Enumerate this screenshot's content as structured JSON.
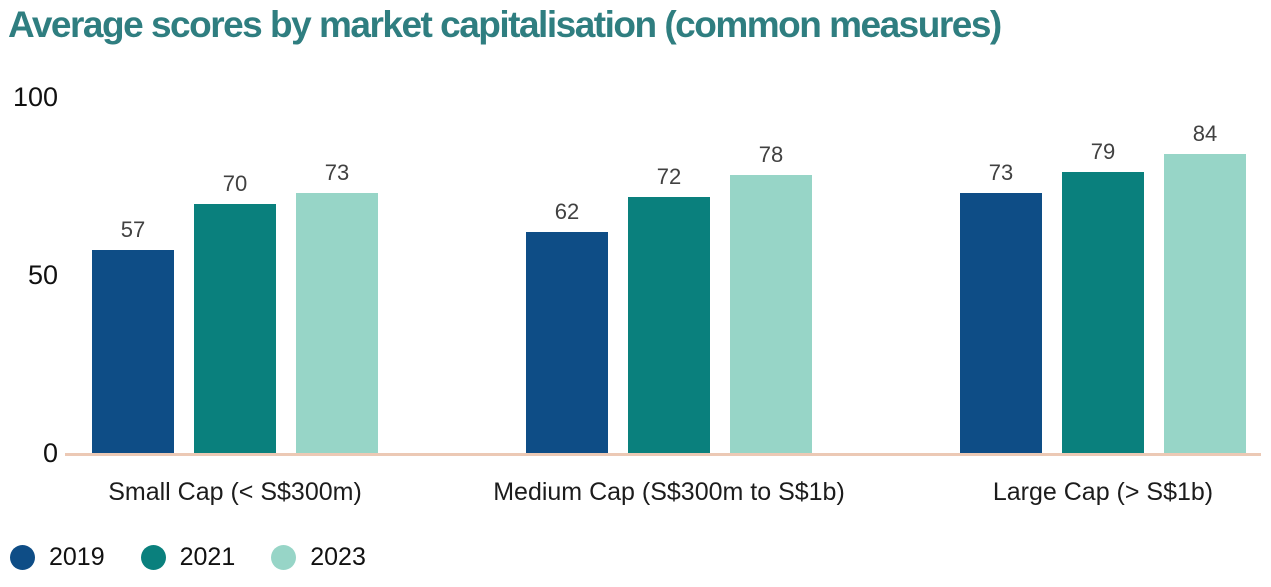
{
  "title": "Average scores by market capitalisation (common measures)",
  "colors": {
    "title_text": "#2f7e80",
    "axis_baseline": "#ecc9b5",
    "value_label": "#414141",
    "tick_label": "#111111",
    "series_2019": "#0e4d86",
    "series_2021": "#0a807d",
    "series_2023": "#97d5c7"
  },
  "chart_data": {
    "type": "bar",
    "title": "Average scores by market capitalisation (common measures)",
    "categories": [
      "Small Cap (< S$300m)",
      "Medium Cap (S$300m to S$1b)",
      "Large Cap (> S$1b)"
    ],
    "series": [
      {
        "name": "2019",
        "color": "#0e4d86",
        "values": [
          57,
          62,
          73
        ]
      },
      {
        "name": "2021",
        "color": "#0a807d",
        "values": [
          70,
          72,
          79
        ]
      },
      {
        "name": "2023",
        "color": "#97d5c7",
        "values": [
          73,
          78,
          84
        ]
      }
    ],
    "xlabel": "",
    "ylabel": "",
    "ylim": [
      0,
      100
    ],
    "yticks": [
      0,
      50,
      100
    ],
    "grid": false,
    "value_labels": true,
    "legend_position": "bottom-left"
  }
}
